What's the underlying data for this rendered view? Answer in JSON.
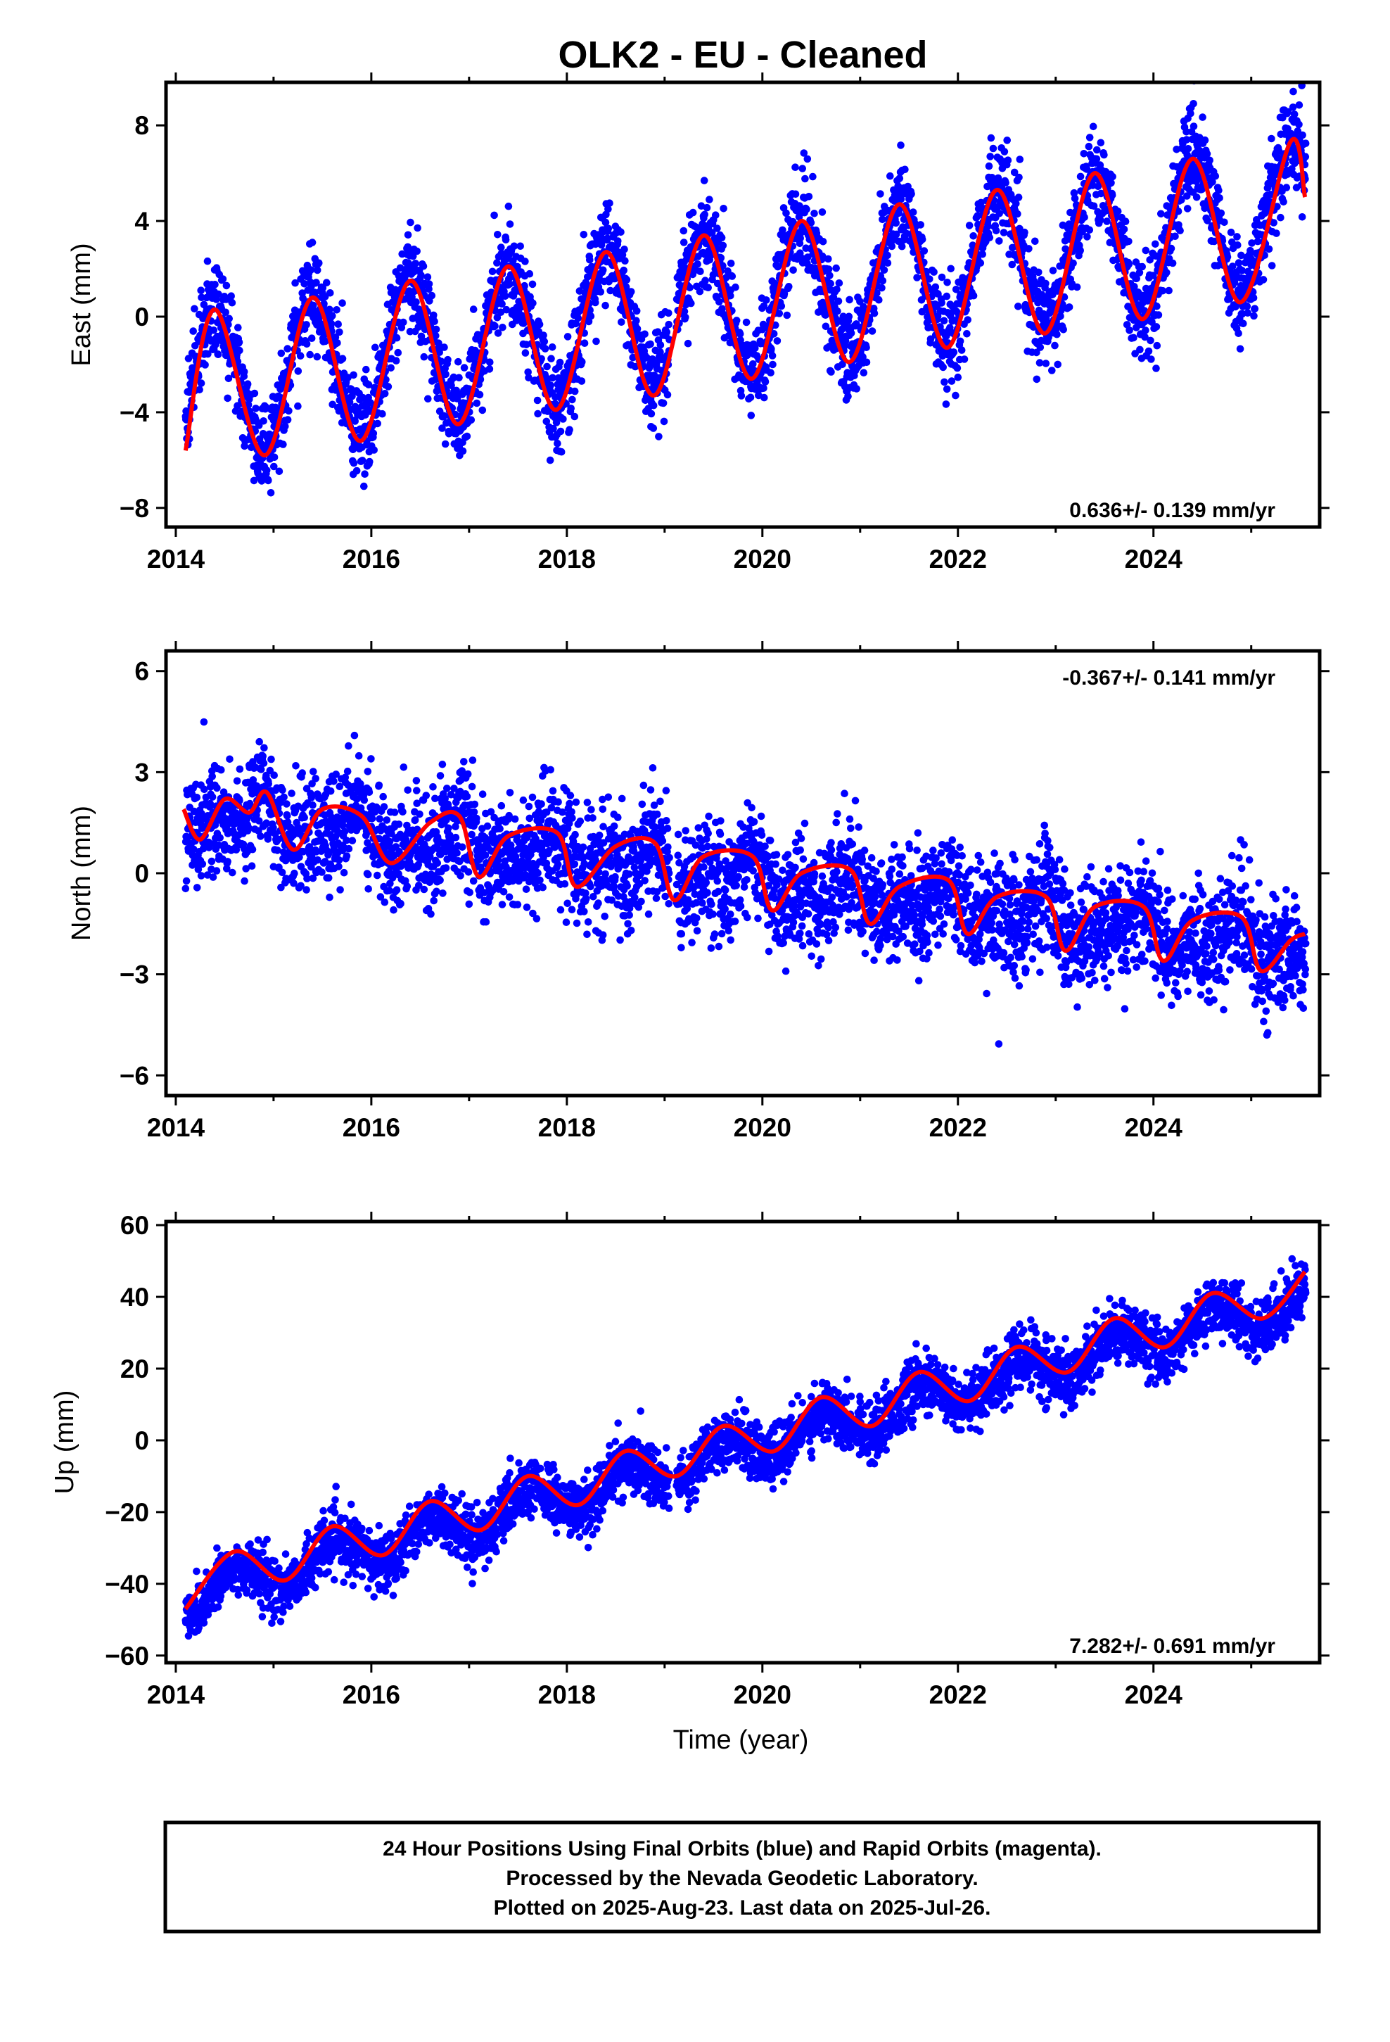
{
  "title": "OLK2  - EU - Cleaned",
  "footer": {
    "lines": [
      "24 Hour Positions Using Final Orbits (blue) and Rapid Orbits (magenta).",
      "Processed by the Nevada Geodetic Laboratory.",
      "Plotted on 2025-Aug-23. Last data on 2025-Jul-26."
    ]
  },
  "colors": {
    "points": "#0000ff",
    "fit": "#ff0000",
    "frame": "#000000"
  },
  "chart_data": [
    {
      "type": "scatter",
      "name": "east",
      "ylabel": "East (mm)",
      "xlabel": "",
      "xlim": [
        2013.9,
        2025.7
      ],
      "ylim": [
        -8.8,
        9.8
      ],
      "xticks": [
        2014,
        2016,
        2018,
        2020,
        2022,
        2024
      ],
      "yticks": [
        -8,
        -4,
        0,
        4,
        8
      ],
      "rate_label": "0.636+/- 0.139 mm/yr",
      "rate_position": "bottom-right",
      "model": {
        "t0": 2014.08,
        "offset": -3.0,
        "rate": 0.636,
        "amplitude": 3.0,
        "peak": 0.4,
        "amplitude2": 0.0,
        "peak2": 0.0,
        "noise": 1.0
      },
      "x": [
        2014.1,
        2014.4,
        2014.91,
        2015.4,
        2015.89,
        2016.4,
        2016.89,
        2017.4,
        2017.89,
        2018.4,
        2018.89,
        2019.4,
        2019.89,
        2020.4,
        2020.89,
        2021.4,
        2021.89,
        2022.4,
        2022.89,
        2023.4,
        2023.89,
        2024.4,
        2024.89,
        2025.4,
        2025.55
      ],
      "y": [
        -5.6,
        0.3,
        -5.8,
        0.8,
        -5.2,
        1.5,
        -4.5,
        2.1,
        -3.9,
        2.7,
        -3.3,
        3.4,
        -2.6,
        4.0,
        -1.9,
        4.7,
        -1.3,
        5.3,
        -0.7,
        6.0,
        -0.1,
        6.6,
        0.6,
        7.3,
        5.0
      ]
    },
    {
      "type": "scatter",
      "name": "north",
      "ylabel": "North (mm)",
      "xlabel": "",
      "xlim": [
        2013.9,
        2025.7
      ],
      "ylim": [
        -6.6,
        6.6
      ],
      "xticks": [
        2014,
        2016,
        2018,
        2020,
        2022,
        2024
      ],
      "yticks": [
        -6,
        -3,
        0,
        3,
        6
      ],
      "rate_label": "-0.367+/- 0.141 mm/yr",
      "rate_position": "top-right",
      "model": {
        "t0": 2014.08,
        "offset": 1.9,
        "rate": -0.367,
        "amplitude": 0.45,
        "peak": 0.85,
        "amplitude2": 0.35,
        "peak2": 0.4,
        "noise": 0.8
      },
      "x": [
        2014.08,
        2014.25,
        2014.5,
        2014.75,
        2014.93,
        2015.2,
        2015.5,
        2015.9,
        2016.2,
        2016.6,
        2016.9,
        2017.1,
        2017.4,
        2017.9,
        2018.1,
        2018.5,
        2018.9,
        2019.1,
        2019.4,
        2019.9,
        2020.1,
        2020.4,
        2020.9,
        2021.1,
        2021.4,
        2021.9,
        2022.1,
        2022.4,
        2022.9,
        2023.1,
        2023.4,
        2023.9,
        2024.1,
        2024.4,
        2024.9,
        2025.1,
        2025.4,
        2025.55
      ],
      "y": [
        1.9,
        1.0,
        2.2,
        1.8,
        2.4,
        0.7,
        1.9,
        1.7,
        0.3,
        1.5,
        1.7,
        -0.1,
        1.1,
        1.2,
        -0.4,
        0.8,
        0.9,
        -0.8,
        0.5,
        0.5,
        -1.1,
        0.0,
        0.1,
        -1.5,
        -0.4,
        -0.2,
        -1.8,
        -0.7,
        -0.7,
        -2.3,
        -1.0,
        -1.0,
        -2.6,
        -1.4,
        -1.3,
        -2.9,
        -2.0,
        -1.8
      ]
    },
    {
      "type": "scatter",
      "name": "up",
      "ylabel": "Up (mm)",
      "xlabel": "Time (year)",
      "xlim": [
        2013.9,
        2025.7
      ],
      "ylim": [
        -62,
        61
      ],
      "xticks": [
        2014,
        2016,
        2018,
        2020,
        2022,
        2024
      ],
      "yticks": [
        -60,
        -40,
        -20,
        0,
        20,
        40,
        60
      ],
      "rate_label": "7.282+/- 0.691 mm/yr",
      "rate_position": "bottom-right",
      "model": {
        "t0": 2014.08,
        "offset": -44.0,
        "rate": 7.282,
        "amplitude": 4.5,
        "peak": 0.62,
        "amplitude2": 0.0,
        "peak2": 0.0,
        "noise": 4.0
      },
      "x": [
        2014.1,
        2014.6,
        2015.12,
        2015.6,
        2016.12,
        2016.6,
        2017.12,
        2017.6,
        2018.12,
        2018.6,
        2019.12,
        2019.6,
        2020.12,
        2020.6,
        2021.12,
        2021.6,
        2022.12,
        2022.6,
        2023.12,
        2023.6,
        2024.12,
        2024.6,
        2025.12,
        2025.55
      ],
      "y": [
        -47,
        -31,
        -39,
        -24,
        -32,
        -17,
        -25,
        -10,
        -18,
        -3,
        -10,
        4,
        -3,
        12,
        4,
        19,
        11,
        26,
        19,
        34,
        26,
        41,
        34,
        47
      ]
    }
  ]
}
